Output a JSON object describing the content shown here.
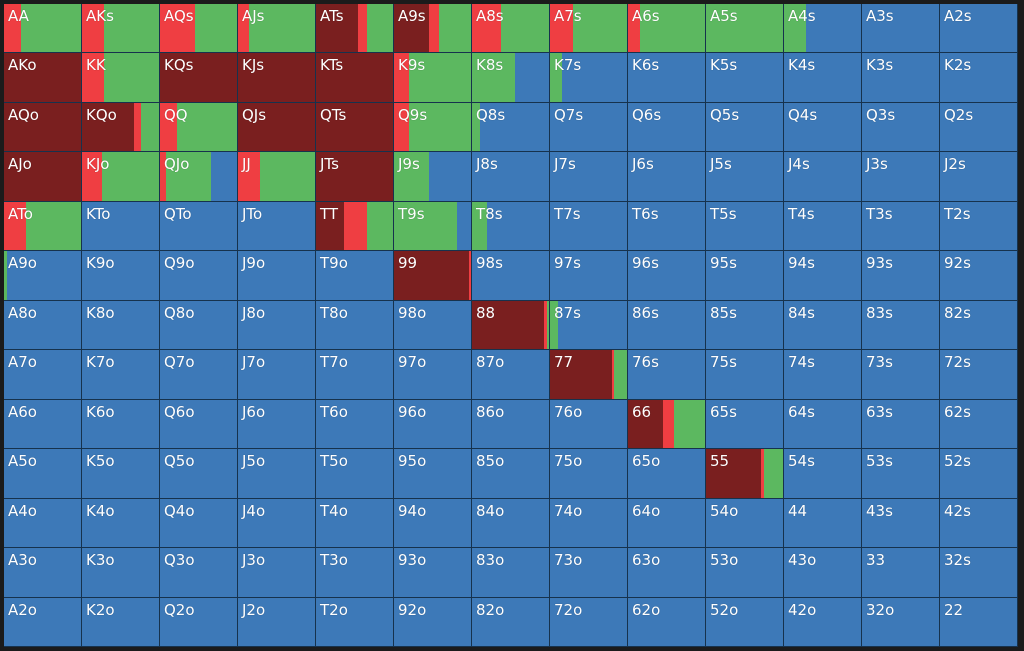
{
  "colors": {
    "raise": "#7a1f1f",
    "allin": "#ef3e42",
    "call": "#5cb860",
    "fold": "#3d79b8"
  },
  "legend_order": [
    "raise",
    "allin",
    "call",
    "fold"
  ],
  "hands": [
    [
      "AA",
      "AKs",
      "AQs",
      "AJs",
      "ATs",
      "A9s",
      "A8s",
      "A7s",
      "A6s",
      "A5s",
      "A4s",
      "A3s",
      "A2s"
    ],
    [
      "AKo",
      "KK",
      "KQs",
      "KJs",
      "KTs",
      "K9s",
      "K8s",
      "K7s",
      "K6s",
      "K5s",
      "K4s",
      "K3s",
      "K2s"
    ],
    [
      "AQo",
      "KQo",
      "QQ",
      "QJs",
      "QTs",
      "Q9s",
      "Q8s",
      "Q7s",
      "Q6s",
      "Q5s",
      "Q4s",
      "Q3s",
      "Q2s"
    ],
    [
      "AJo",
      "KJo",
      "QJo",
      "JJ",
      "JTs",
      "J9s",
      "J8s",
      "J7s",
      "J6s",
      "J5s",
      "J4s",
      "J3s",
      "J2s"
    ],
    [
      "ATo",
      "KTo",
      "QTo",
      "JTo",
      "TT",
      "T9s",
      "T8s",
      "T7s",
      "T6s",
      "T5s",
      "T4s",
      "T3s",
      "T2s"
    ],
    [
      "A9o",
      "K9o",
      "Q9o",
      "J9o",
      "T9o",
      "99",
      "98s",
      "97s",
      "96s",
      "95s",
      "94s",
      "93s",
      "92s"
    ],
    [
      "A8o",
      "K8o",
      "Q8o",
      "J8o",
      "T8o",
      "98o",
      "88",
      "87s",
      "86s",
      "85s",
      "84s",
      "83s",
      "82s"
    ],
    [
      "A7o",
      "K7o",
      "Q7o",
      "J7o",
      "T7o",
      "97o",
      "87o",
      "77",
      "76s",
      "75s",
      "74s",
      "73s",
      "72s"
    ],
    [
      "A6o",
      "K6o",
      "Q6o",
      "J6o",
      "T6o",
      "96o",
      "86o",
      "76o",
      "66",
      "65s",
      "64s",
      "63s",
      "62s"
    ],
    [
      "A5o",
      "K5o",
      "Q5o",
      "J5o",
      "T5o",
      "95o",
      "85o",
      "75o",
      "65o",
      "55",
      "54s",
      "53s",
      "52s"
    ],
    [
      "A4o",
      "K4o",
      "Q4o",
      "J4o",
      "T4o",
      "94o",
      "84o",
      "74o",
      "64o",
      "54o",
      "44",
      "43s",
      "42s"
    ],
    [
      "A3o",
      "K3o",
      "Q3o",
      "J3o",
      "T3o",
      "93o",
      "83o",
      "73o",
      "63o",
      "53o",
      "43o",
      "33",
      "32s"
    ],
    [
      "A2o",
      "K2o",
      "Q2o",
      "J2o",
      "T2o",
      "92o",
      "82o",
      "72o",
      "62o",
      "52o",
      "42o",
      "32o",
      "22"
    ]
  ],
  "frequencies": {
    "AA": {
      "raise": 0,
      "allin": 0.22,
      "call": 0.78,
      "fold": 0
    },
    "AKs": {
      "raise": 0,
      "allin": 0.28,
      "call": 0.72,
      "fold": 0
    },
    "AQs": {
      "raise": 0,
      "allin": 0.46,
      "call": 0.54,
      "fold": 0
    },
    "AJs": {
      "raise": 0,
      "allin": 0.14,
      "call": 0.86,
      "fold": 0
    },
    "ATs": {
      "raise": 0.54,
      "allin": 0.12,
      "call": 0.34,
      "fold": 0
    },
    "A9s": {
      "raise": 0.45,
      "allin": 0.13,
      "call": 0.42,
      "fold": 0
    },
    "A8s": {
      "raise": 0,
      "allin": 0.38,
      "call": 0.62,
      "fold": 0
    },
    "A7s": {
      "raise": 0,
      "allin": 0.3,
      "call": 0.7,
      "fold": 0
    },
    "A6s": {
      "raise": 0,
      "allin": 0.15,
      "call": 0.85,
      "fold": 0
    },
    "A5s": {
      "raise": 0,
      "allin": 0,
      "call": 1.0,
      "fold": 0
    },
    "A4s": {
      "raise": 0,
      "allin": 0,
      "call": 0.28,
      "fold": 0.72
    },
    "AKo": {
      "raise": 1.0,
      "allin": 0,
      "call": 0,
      "fold": 0
    },
    "KK": {
      "raise": 0,
      "allin": 0.28,
      "call": 0.72,
      "fold": 0
    },
    "KQs": {
      "raise": 1.0,
      "allin": 0,
      "call": 0,
      "fold": 0
    },
    "KJs": {
      "raise": 1.0,
      "allin": 0,
      "call": 0,
      "fold": 0
    },
    "KTs": {
      "raise": 1.0,
      "allin": 0,
      "call": 0,
      "fold": 0
    },
    "K9s": {
      "raise": 0,
      "allin": 0.2,
      "call": 0.8,
      "fold": 0
    },
    "K8s": {
      "raise": 0,
      "allin": 0,
      "call": 0.56,
      "fold": 0.44
    },
    "K7s": {
      "raise": 0,
      "allin": 0,
      "call": 0.16,
      "fold": 0.84
    },
    "AQo": {
      "raise": 1.0,
      "allin": 0,
      "call": 0,
      "fold": 0
    },
    "KQo": {
      "raise": 0.68,
      "allin": 0.08,
      "call": 0.24,
      "fold": 0
    },
    "QQ": {
      "raise": 0,
      "allin": 0.22,
      "call": 0.78,
      "fold": 0
    },
    "QJs": {
      "raise": 1.0,
      "allin": 0,
      "call": 0,
      "fold": 0
    },
    "QTs": {
      "raise": 1.0,
      "allin": 0,
      "call": 0,
      "fold": 0
    },
    "Q9s": {
      "raise": 0,
      "allin": 0.2,
      "call": 0.8,
      "fold": 0
    },
    "Q8s": {
      "raise": 0,
      "allin": 0,
      "call": 0.1,
      "fold": 0.9
    },
    "AJo": {
      "raise": 1.0,
      "allin": 0,
      "call": 0,
      "fold": 0
    },
    "KJo": {
      "raise": 0,
      "allin": 0.26,
      "call": 0.74,
      "fold": 0
    },
    "QJo": {
      "raise": 0,
      "allin": 0.08,
      "call": 0.58,
      "fold": 0.34
    },
    "JJ": {
      "raise": 0,
      "allin": 0.28,
      "call": 0.72,
      "fold": 0
    },
    "JTs": {
      "raise": 1.0,
      "allin": 0,
      "call": 0,
      "fold": 0
    },
    "J9s": {
      "raise": 0,
      "allin": 0,
      "call": 0.46,
      "fold": 0.54
    },
    "ATo": {
      "raise": 0,
      "allin": 0.28,
      "call": 0.72,
      "fold": 0
    },
    "TT": {
      "raise": 0.36,
      "allin": 0.3,
      "call": 0.34,
      "fold": 0
    },
    "T9s": {
      "raise": 0,
      "allin": 0,
      "call": 0.82,
      "fold": 0.18
    },
    "T8s": {
      "raise": 0,
      "allin": 0,
      "call": 0.2,
      "fold": 0.8
    },
    "A9o": {
      "raise": 0,
      "allin": 0,
      "call": 0.04,
      "fold": 0.96
    },
    "99": {
      "raise": 0.98,
      "allin": 0.02,
      "call": 0,
      "fold": 0
    },
    "88": {
      "raise": 0.94,
      "allin": 0.03,
      "call": 0.03,
      "fold": 0
    },
    "87s": {
      "raise": 0,
      "allin": 0,
      "call": 0.1,
      "fold": 0.9
    },
    "77": {
      "raise": 0.8,
      "allin": 0.03,
      "call": 0.17,
      "fold": 0
    },
    "66": {
      "raise": 0.45,
      "allin": 0.15,
      "call": 0.4,
      "fold": 0
    },
    "55": {
      "raise": 0.71,
      "allin": 0.04,
      "call": 0.25,
      "fold": 0
    }
  }
}
